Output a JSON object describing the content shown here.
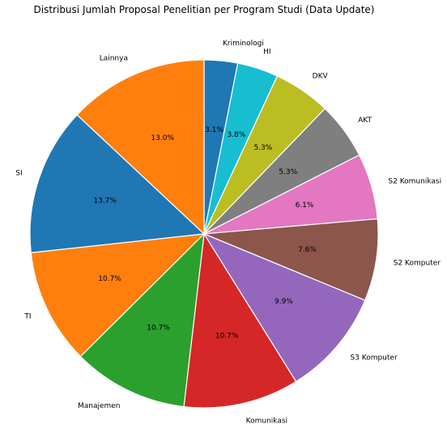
{
  "chart_data": {
    "type": "pie",
    "title": "Distribusi Jumlah Proposal Penelitian per Program Studi (Data Update)",
    "start_angle_deg": 90,
    "direction": "clockwise",
    "slices": [
      {
        "label": "Kriminologi",
        "value": 3.1,
        "pct_label": "3.1%",
        "color": "#1f77b4"
      },
      {
        "label": "HI",
        "value": 3.8,
        "pct_label": "3.8%",
        "color": "#17becf"
      },
      {
        "label": "DKV",
        "value": 5.3,
        "pct_label": "5.3%",
        "color": "#bcbd22"
      },
      {
        "label": "AKT",
        "value": 5.3,
        "pct_label": "5.3%",
        "color": "#7f7f7f"
      },
      {
        "label": "S2 Komunikasi",
        "value": 6.1,
        "pct_label": "6.1%",
        "color": "#e377c2"
      },
      {
        "label": "S2 Komputer",
        "value": 7.6,
        "pct_label": "7.6%",
        "color": "#8c564b"
      },
      {
        "label": "S3 Komputer",
        "value": 9.9,
        "pct_label": "9.9%",
        "color": "#9467bd"
      },
      {
        "label": "Komunikasi",
        "value": 10.7,
        "pct_label": "10.7%",
        "color": "#d62728"
      },
      {
        "label": "Manajemen",
        "value": 10.7,
        "pct_label": "10.7%",
        "color": "#2ca02c"
      },
      {
        "label": "TI",
        "value": 10.7,
        "pct_label": "10.7%",
        "color": "#ff7f0e"
      },
      {
        "label": "SI",
        "value": 13.7,
        "pct_label": "13.7%",
        "color": "#1f77b4"
      },
      {
        "label": "Lainnya",
        "value": 13.0,
        "pct_label": "13.0%",
        "color": "#ff7f0e"
      }
    ]
  }
}
